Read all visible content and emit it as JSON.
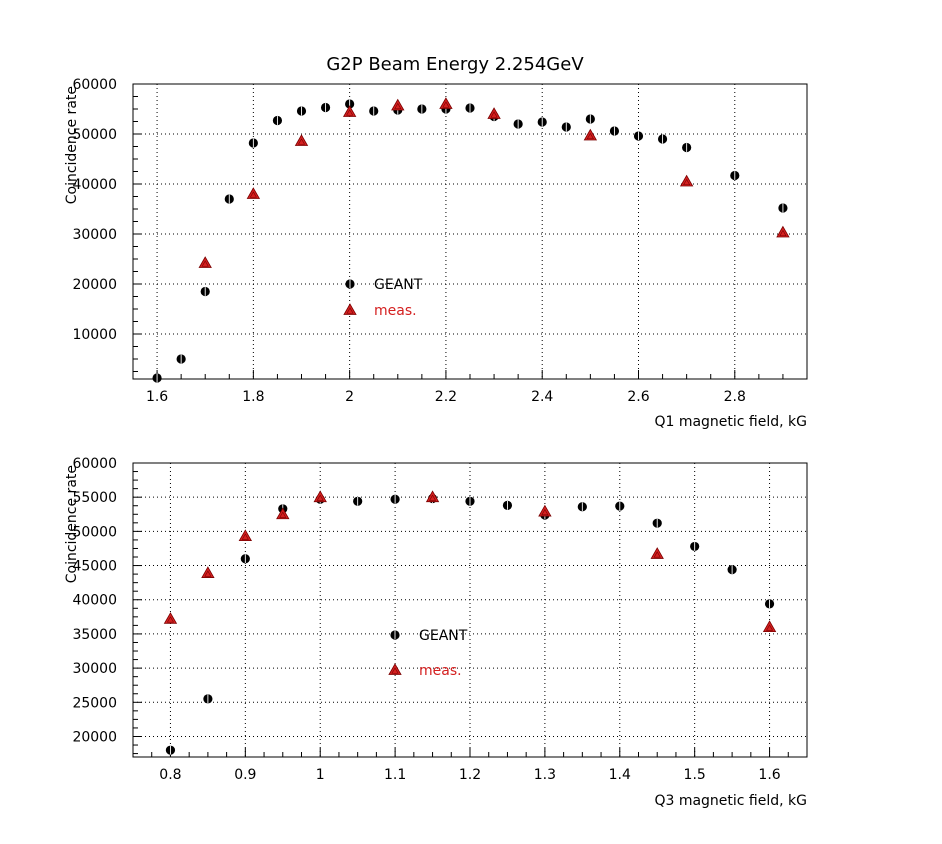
{
  "colors": {
    "geant": "#000000",
    "meas": "#d42020",
    "grid": "#000000",
    "axis": "#000000"
  },
  "chart_data": [
    {
      "type": "scatter",
      "title": "G2P Beam Energy 2.254GeV",
      "xlabel": "Q1 magnetic field, kG",
      "ylabel": "Coincidence rate",
      "xlim": [
        1.55,
        2.95
      ],
      "ylim": [
        1000,
        60000
      ],
      "xticks": [
        "1.6",
        "1.8",
        "2",
        "2.2",
        "2.4",
        "2.6",
        "2.8"
      ],
      "xtick_values": [
        1.6,
        1.8,
        2.0,
        2.2,
        2.4,
        2.6,
        2.8
      ],
      "yticks": [
        "10000",
        "20000",
        "30000",
        "40000",
        "50000",
        "60000"
      ],
      "ytick_values": [
        10000,
        20000,
        30000,
        40000,
        50000,
        60000
      ],
      "grid": true,
      "legend": {
        "position": "center-left"
      },
      "series": [
        {
          "name": "GEANT",
          "marker": "circle-black",
          "x": [
            1.6,
            1.65,
            1.7,
            1.75,
            1.8,
            1.85,
            1.9,
            1.95,
            2.0,
            2.05,
            2.1,
            2.15,
            2.2,
            2.25,
            2.3,
            2.35,
            2.4,
            2.45,
            2.5,
            2.55,
            2.6,
            2.65,
            2.7,
            2.8,
            2.9
          ],
          "y": [
            1200,
            5000,
            18500,
            37000,
            48200,
            52700,
            54600,
            55300,
            56000,
            54600,
            54800,
            55000,
            55000,
            55200,
            53500,
            52000,
            52400,
            51400,
            53000,
            50600,
            49600,
            49000,
            47300,
            41700,
            35200
          ]
        },
        {
          "name": "meas.",
          "marker": "triangle-red",
          "x": [
            1.7,
            1.8,
            1.9,
            2.0,
            2.1,
            2.2,
            2.3,
            2.5,
            2.7,
            2.9
          ],
          "y": [
            24200,
            38000,
            48600,
            54400,
            55700,
            56000,
            54000,
            49700,
            40500,
            30300
          ]
        }
      ]
    },
    {
      "type": "scatter",
      "title": "",
      "xlabel": "Q3 magnetic field, kG",
      "ylabel": "Coincidence rate",
      "xlim": [
        0.75,
        1.65
      ],
      "ylim": [
        17000,
        60000
      ],
      "xticks": [
        "0.8",
        "0.9",
        "1",
        "1.1",
        "1.2",
        "1.3",
        "1.4",
        "1.5",
        "1.6"
      ],
      "xtick_values": [
        0.8,
        0.9,
        1.0,
        1.1,
        1.2,
        1.3,
        1.4,
        1.5,
        1.6
      ],
      "yticks": [
        "20000",
        "25000",
        "30000",
        "35000",
        "40000",
        "45000",
        "50000",
        "55000",
        "60000"
      ],
      "ytick_values": [
        20000,
        25000,
        30000,
        35000,
        40000,
        45000,
        50000,
        55000,
        60000
      ],
      "grid": true,
      "legend": {
        "position": "center"
      },
      "series": [
        {
          "name": "GEANT",
          "marker": "circle-black",
          "x": [
            0.8,
            0.85,
            0.9,
            0.95,
            1.0,
            1.05,
            1.1,
            1.15,
            1.2,
            1.25,
            1.3,
            1.35,
            1.4,
            1.45,
            1.5,
            1.55,
            1.6
          ],
          "y": [
            18000,
            25500,
            46000,
            53300,
            54700,
            54400,
            54700,
            54800,
            54400,
            53800,
            52400,
            53600,
            53700,
            51200,
            47800,
            44400,
            39400
          ]
        },
        {
          "name": "meas.",
          "marker": "triangle-red",
          "x": [
            0.8,
            0.85,
            0.9,
            0.95,
            1.0,
            1.15,
            1.3,
            1.45,
            1.6
          ],
          "y": [
            37200,
            43900,
            49300,
            52500,
            55000,
            55000,
            52900,
            46700,
            36000
          ]
        }
      ]
    }
  ]
}
